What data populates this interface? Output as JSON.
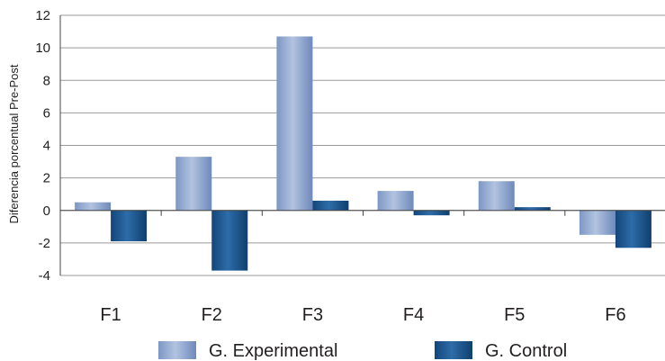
{
  "chart_data": {
    "type": "bar",
    "categories": [
      "F1",
      "F2",
      "F3",
      "F4",
      "F5",
      "F6"
    ],
    "series": [
      {
        "name": "G. Experimental",
        "values": [
          0.5,
          3.3,
          10.7,
          1.2,
          1.8,
          -1.5
        ]
      },
      {
        "name": "G. Control",
        "values": [
          -1.9,
          -3.7,
          0.6,
          -0.3,
          0.2,
          -2.3
        ]
      }
    ],
    "title": "",
    "xlabel": "",
    "ylabel": "Diferencia porcentual Pre-Post",
    "ylim": [
      -4,
      12
    ],
    "yticks": [
      "-4",
      "-2",
      "0",
      "2",
      "4",
      "6",
      "8",
      "10",
      "12"
    ],
    "grid": true,
    "legend_position": "bottom",
    "colors": {
      "series": [
        "#8fa6cf",
        "#1f5893"
      ],
      "grid": "#9a9a9a",
      "axis": "#444444"
    }
  }
}
